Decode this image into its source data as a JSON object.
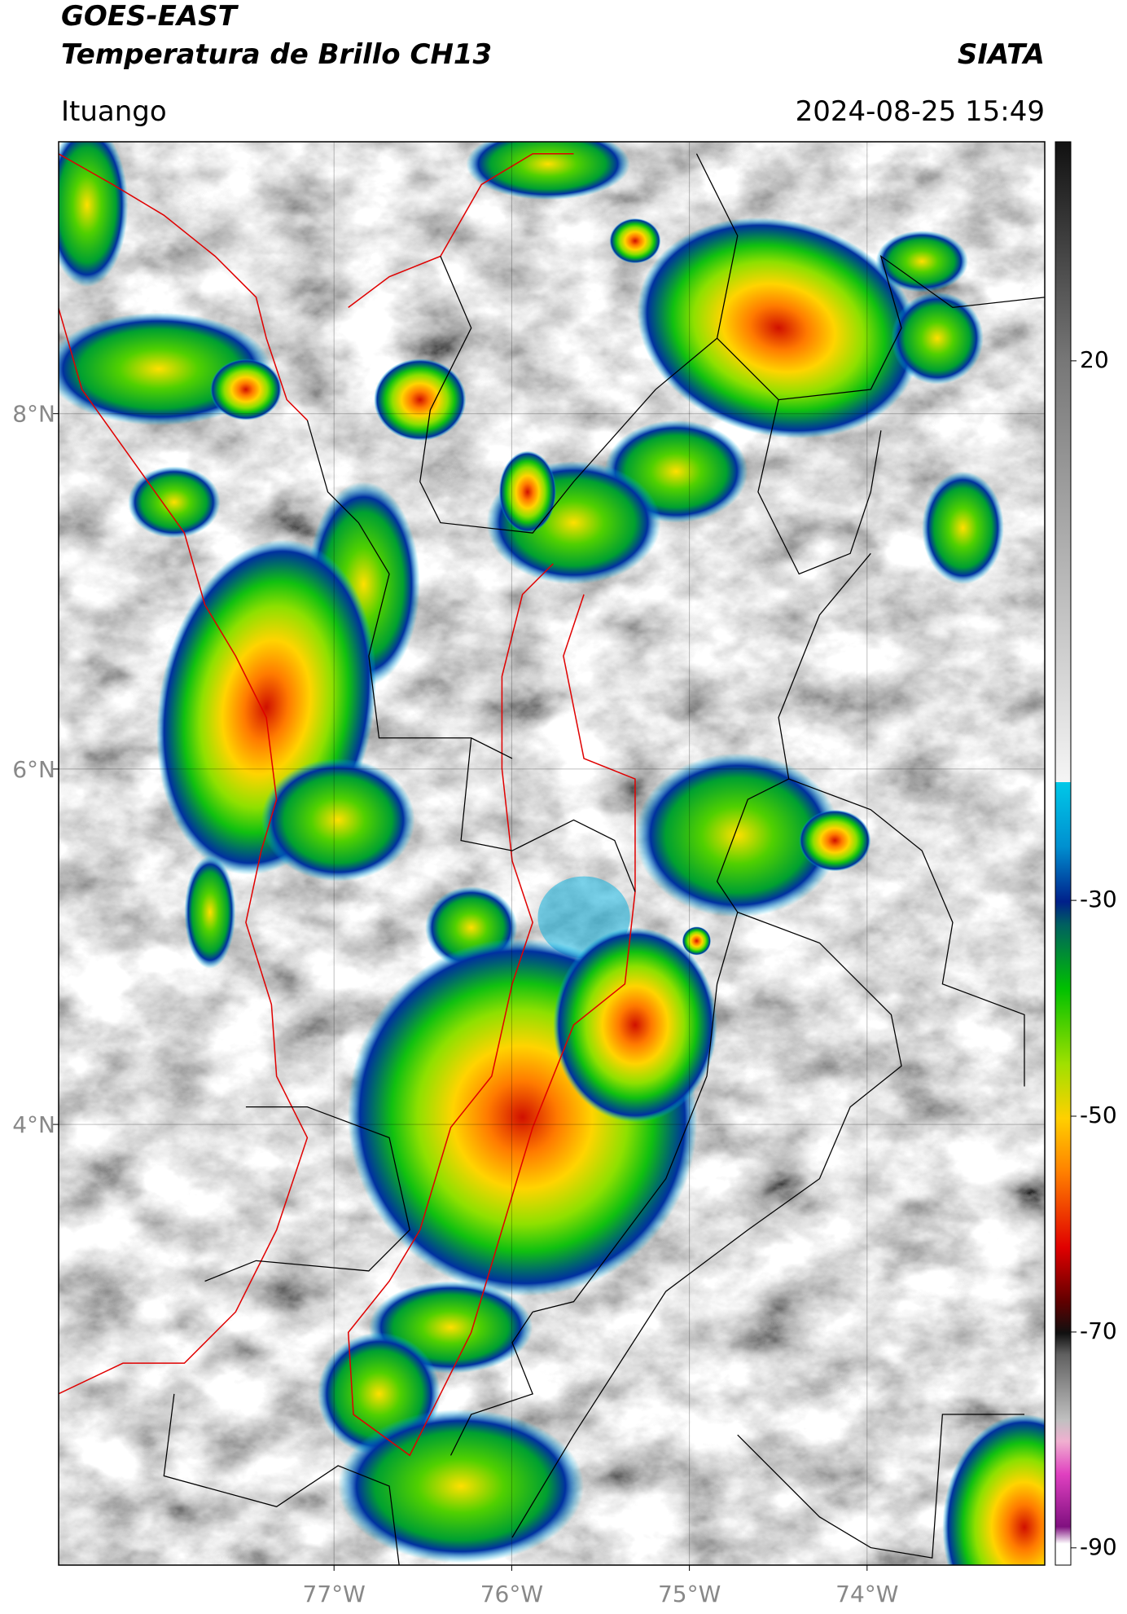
{
  "header": {
    "title": "GOES-EAST",
    "subtitle": "Temperatura de Brillo CH13",
    "source": "SIATA",
    "location": "Ituango",
    "datetime": "2024-08-25 15:49"
  },
  "map": {
    "xlim": [
      -78.55,
      -73.0
    ],
    "ylim": [
      1.52,
      9.53
    ],
    "xticks": [
      {
        "value": -77,
        "label": "77°W"
      },
      {
        "value": -76,
        "label": "76°W"
      },
      {
        "value": -75,
        "label": "75°W"
      },
      {
        "value": -74,
        "label": "74°W"
      }
    ],
    "yticks": [
      {
        "value": 8,
        "label": "8°N"
      },
      {
        "value": 6,
        "label": "6°N"
      },
      {
        "value": 4,
        "label": "4°N"
      }
    ],
    "grid": true
  },
  "colorbar": {
    "lim": [
      -91.6,
      40.3
    ],
    "ticks": [
      20,
      -30,
      -50,
      -70,
      -90
    ]
  }
}
